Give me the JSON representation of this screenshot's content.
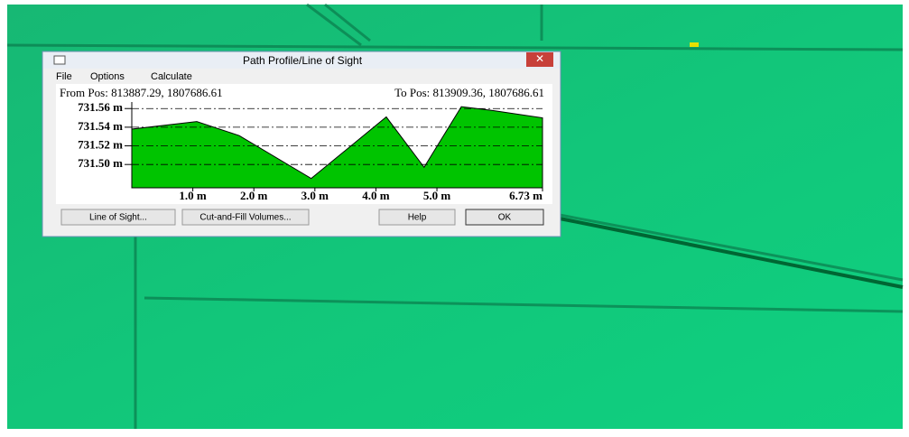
{
  "window": {
    "title": "Path Profile/Line of Sight"
  },
  "menu": [
    "File",
    "Options",
    "Calculate"
  ],
  "from_pos": "From Pos: 813887.29, 1807686.61",
  "to_pos": "To Pos: 813909.36, 1807686.61",
  "profile": {
    "type": "area",
    "color": "#00c400",
    "grid": true,
    "x": [
      0,
      1.065,
      1.76,
      2.94,
      4.17,
      4.79,
      5.4,
      5.9,
      6.73
    ],
    "values": [
      731.538,
      731.546,
      731.531,
      731.485,
      731.551,
      731.497,
      731.562,
      731.558,
      731.55
    ],
    "xlim": [
      0,
      6.73
    ],
    "ylim": [
      731.475,
      731.567
    ],
    "xticks": [
      {
        "value": 1.0,
        "label": "1.0 m"
      },
      {
        "value": 2.0,
        "label": "2.0 m"
      },
      {
        "value": 3.0,
        "label": "3.0 m"
      },
      {
        "value": 4.0,
        "label": "4.0 m"
      },
      {
        "value": 5.0,
        "label": "5.0 m"
      },
      {
        "value": 6.73,
        "label": "6.73 m"
      }
    ],
    "yticks": [
      {
        "value": 731.5,
        "label": "731.50 m"
      },
      {
        "value": 731.52,
        "label": "731.52 m"
      },
      {
        "value": 731.54,
        "label": "731.54 m"
      },
      {
        "value": 731.56,
        "label": "731.56 m"
      }
    ]
  },
  "buttons": [
    "Line of Sight...",
    "Cut-and-Fill Volumes...",
    "Help",
    "OK"
  ]
}
